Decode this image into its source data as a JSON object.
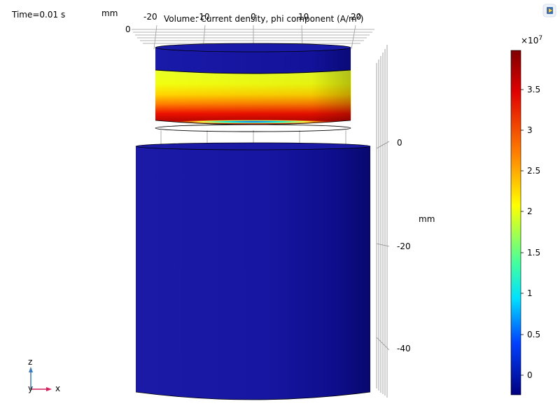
{
  "plot": {
    "time_label": "Time=0.01 s",
    "title_main": "Volume: Current density, phi component (A/m",
    "title_exp": "2",
    "title_end": ")",
    "x_unit": "mm",
    "z_unit": "mm",
    "x_ticks": [
      "-20",
      "-10",
      "0",
      "10",
      "20"
    ],
    "y_tick": "0",
    "z_ticks": [
      "0",
      "-20",
      "-40"
    ]
  },
  "colorbar": {
    "multiplier_base": "×10",
    "multiplier_exp": "7",
    "ticks": [
      "3.5",
      "3",
      "2.5",
      "2",
      "1.5",
      "1",
      "0.5",
      "0"
    ],
    "colors": {
      "max": "#800000",
      "red": "#ff0000",
      "yellow": "#ffff00",
      "cyan": "#00ffff",
      "blue": "#0000ff",
      "min": "#000080"
    }
  },
  "axes_triad": {
    "z": "z",
    "y": "y",
    "x": "x",
    "x_color": "#d0245a",
    "z_color": "#3a78c8"
  },
  "toolbar": {
    "icon": "graphics-toolbar-icon"
  }
}
